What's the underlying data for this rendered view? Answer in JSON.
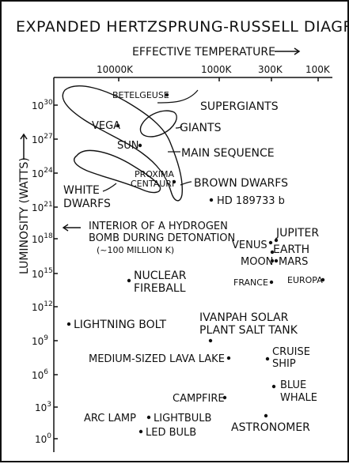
{
  "title": "EXPANDED HERTZSPRUNG-RUSSELL DIAGRAM",
  "x_axis_label": "EFFECTIVE TEMPERATURE",
  "y_axis_label": "LUMINOSITY (WATTS)",
  "x_ticks": [
    {
      "label": "10000K",
      "value": 10000
    },
    {
      "label": "1000K",
      "value": 1000
    },
    {
      "label": "300K",
      "value": 300
    },
    {
      "label": "100K",
      "value": 100
    }
  ],
  "y_ticks": [
    {
      "exp": "30",
      "value": 30
    },
    {
      "exp": "27",
      "value": 27
    },
    {
      "exp": "24",
      "value": 24
    },
    {
      "exp": "21",
      "value": 21
    },
    {
      "exp": "18",
      "value": 18
    },
    {
      "exp": "15",
      "value": 15
    },
    {
      "exp": "12",
      "value": 12
    },
    {
      "exp": "9",
      "value": 9
    },
    {
      "exp": "6",
      "value": 6
    },
    {
      "exp": "3",
      "value": 3
    },
    {
      "exp": "0",
      "value": 0
    }
  ],
  "regions": {
    "supergiants": "SUPERGIANTS",
    "giants": "GIANTS",
    "main_sequence": "MAIN SEQUENCE",
    "brown_dwarfs": "BROWN DWARFS",
    "white_dwarfs_1": "WHITE",
    "white_dwarfs_2": "DWARFS"
  },
  "points": {
    "betelgeuse": "BETELGEUSE",
    "vega": "VEGA",
    "sun": "SUN",
    "proxima_1": "PROXIMA",
    "proxima_2": "CENTAURI",
    "hd": "HD 189733 b",
    "bomb_1": "INTERIOR OF A HYDROGEN",
    "bomb_2": "BOMB DURING DETONATION",
    "bomb_3": "(~100 MILLION K)",
    "jupiter": "JUPITER",
    "venus": "VENUS",
    "earth": "EARTH",
    "moon": "MOON",
    "mars": "MARS",
    "france": "FRANCE",
    "europa": "EUROPA",
    "nuclear_1": "NUCLEAR",
    "nuclear_2": "FIREBALL",
    "lightning": "LIGHTNING BOLT",
    "ivanpah_1": "IVANPAH SOLAR",
    "ivanpah_2": "PLANT SALT TANK",
    "lava": "MEDIUM-SIZED LAVA LAKE",
    "cruise_1": "CRUISE",
    "cruise_2": "SHIP",
    "whale_1": "BLUE",
    "whale_2": "WHALE",
    "campfire": "CAMPFIRE",
    "arclamp": "ARC LAMP",
    "lightbulb": "LIGHTBULB",
    "ledbulb": "LED BULB",
    "astronomer": "ASTRONOMER"
  }
}
